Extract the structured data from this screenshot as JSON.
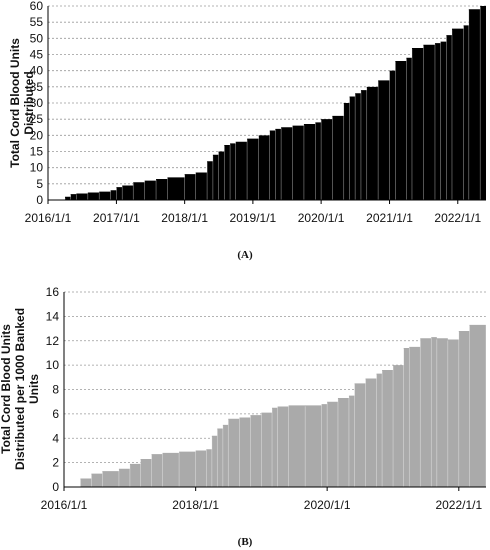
{
  "chart_data": [
    {
      "type": "area",
      "caption": "(A)",
      "ylabel_lines": [
        "Total Cord Blood Units",
        "Distributed"
      ],
      "xlabel": "",
      "ylim": [
        0,
        60
      ],
      "yticks": [
        0,
        5,
        10,
        15,
        20,
        25,
        30,
        35,
        40,
        45,
        50,
        55,
        60
      ],
      "xlim": [
        "2016-01-01",
        "2022-06-01"
      ],
      "xticks": [
        "2016/1/1",
        "2017/1/1",
        "2018/1/1",
        "2019/1/1",
        "2020/1/1",
        "2021/1/1",
        "2022/1/1"
      ],
      "grid": true,
      "fill": "#000000",
      "series": [
        {
          "x": [
            "2016-04-01",
            "2016-05-01",
            "2016-06-01",
            "2016-08-01",
            "2016-10-01",
            "2016-12-01",
            "2017-01-01",
            "2017-02-01",
            "2017-04-01",
            "2017-06-01",
            "2017-08-01",
            "2017-10-01",
            "2018-01-01",
            "2018-03-01",
            "2018-05-01",
            "2018-06-01",
            "2018-07-01",
            "2018-08-01",
            "2018-09-01",
            "2018-10-01",
            "2018-12-01",
            "2019-02-01",
            "2019-04-01",
            "2019-05-01",
            "2019-06-01",
            "2019-08-01",
            "2019-10-01",
            "2019-12-01",
            "2020-01-01",
            "2020-03-01",
            "2020-05-01",
            "2020-06-01",
            "2020-07-01",
            "2020-08-01",
            "2020-09-01",
            "2020-11-01",
            "2021-01-01",
            "2021-02-01",
            "2021-04-01",
            "2021-05-01",
            "2021-07-01",
            "2021-09-01",
            "2021-10-01",
            "2021-11-01",
            "2021-12-01",
            "2022-02-01",
            "2022-03-01",
            "2022-05-01"
          ],
          "values": [
            1,
            1.8,
            2,
            2.3,
            2.6,
            3,
            4,
            4.5,
            5.5,
            6,
            6.5,
            7,
            8,
            8.5,
            12,
            14,
            15,
            17,
            17.5,
            18,
            19,
            20,
            21.5,
            22,
            22.5,
            23,
            23.5,
            24,
            25,
            26,
            30,
            32,
            33,
            34,
            35,
            37,
            40,
            43,
            44,
            47,
            48,
            48.5,
            49,
            51,
            53,
            54,
            59,
            60
          ]
        }
      ]
    },
    {
      "type": "area",
      "caption": "(B)",
      "ylabel_lines": [
        "Total Cord Blood Units",
        "Distributed per 1000 Banked",
        "Units"
      ],
      "xlabel": "",
      "ylim": [
        0,
        16
      ],
      "yticks": [
        0,
        2,
        4,
        6,
        8,
        10,
        12,
        14,
        16
      ],
      "xlim": [
        "2016-01-01",
        "2022-06-01"
      ],
      "xticks": [
        "2016/1/1",
        "2018/1/1",
        "2020/1/1",
        "2022/1/1"
      ],
      "grid": true,
      "fill": "#aaaaaa",
      "series": [
        {
          "x": [
            "2016-04-01",
            "2016-06-01",
            "2016-08-01",
            "2016-11-01",
            "2017-01-01",
            "2017-03-01",
            "2017-05-01",
            "2017-07-01",
            "2017-10-01",
            "2018-01-01",
            "2018-03-01",
            "2018-04-01",
            "2018-05-01",
            "2018-06-01",
            "2018-07-01",
            "2018-09-01",
            "2018-11-01",
            "2019-01-01",
            "2019-03-01",
            "2019-04-01",
            "2019-06-01",
            "2019-09-01",
            "2019-12-01",
            "2020-01-01",
            "2020-03-01",
            "2020-05-01",
            "2020-06-01",
            "2020-08-01",
            "2020-10-01",
            "2020-11-01",
            "2021-01-01",
            "2021-03-01",
            "2021-04-01",
            "2021-06-01",
            "2021-08-01",
            "2021-09-01",
            "2021-11-01",
            "2022-01-01",
            "2022-03-01",
            "2022-06-01"
          ],
          "values": [
            0.7,
            1.1,
            1.3,
            1.5,
            1.9,
            2.3,
            2.7,
            2.8,
            2.9,
            3.0,
            3.1,
            4.2,
            4.8,
            5.1,
            5.6,
            5.7,
            5.9,
            6.1,
            6.5,
            6.6,
            6.7,
            6.7,
            6.8,
            7.0,
            7.3,
            7.5,
            8.5,
            8.9,
            9.3,
            9.6,
            10.0,
            11.4,
            11.5,
            12.2,
            12.3,
            12.2,
            12.1,
            12.8,
            13.3,
            14.2
          ]
        }
      ]
    }
  ]
}
